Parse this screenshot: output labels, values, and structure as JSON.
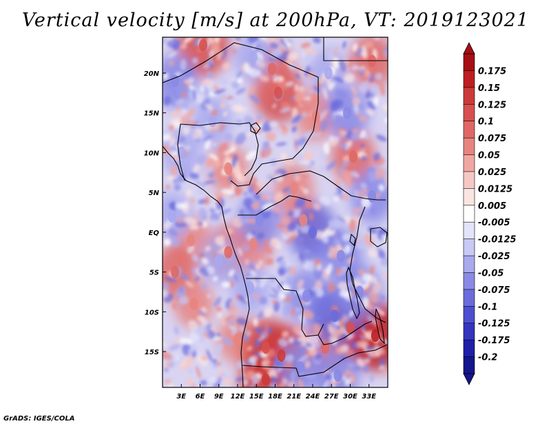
{
  "chart_data": {
    "type": "heatmap",
    "title": "Vertical velocity [m/s] at 200hPa, VT: 2019123021",
    "variable": "Vertical velocity",
    "units": "m/s",
    "level": "200hPa",
    "valid_time": "2019123021",
    "x_range": [
      0,
      36
    ],
    "y_range": [
      -19.5,
      24.5
    ],
    "x_ticks": [
      {
        "value": 3,
        "label": "3E"
      },
      {
        "value": 6,
        "label": "6E"
      },
      {
        "value": 9,
        "label": "9E"
      },
      {
        "value": 12,
        "label": "12E"
      },
      {
        "value": 15,
        "label": "15E"
      },
      {
        "value": 18,
        "label": "18E"
      },
      {
        "value": 21,
        "label": "21E"
      },
      {
        "value": 24,
        "label": "24E"
      },
      {
        "value": 27,
        "label": "27E"
      },
      {
        "value": 30,
        "label": "30E"
      },
      {
        "value": 33,
        "label": "33E"
      }
    ],
    "y_ticks": [
      {
        "value": 20,
        "label": "20N"
      },
      {
        "value": 15,
        "label": "15N"
      },
      {
        "value": 10,
        "label": "10N"
      },
      {
        "value": 5,
        "label": "5N"
      },
      {
        "value": 0,
        "label": "EQ"
      },
      {
        "value": -5,
        "label": "5S"
      },
      {
        "value": -10,
        "label": "10S"
      },
      {
        "value": -15,
        "label": "15S"
      }
    ],
    "colorbar": {
      "labels": [
        "0.175",
        "0.15",
        "0.125",
        "0.1",
        "0.075",
        "0.05",
        "0.025",
        "0.0125",
        "0.005",
        "-0.005",
        "-0.0125",
        "-0.025",
        "-0.05",
        "-0.075",
        "-0.1",
        "-0.125",
        "-0.175",
        "-0.2"
      ],
      "colors": [
        "#a50f15",
        "#bd1e23",
        "#cb3a39",
        "#d6504f",
        "#df6866",
        "#e88480",
        "#f0a7a2",
        "#f6c8c4",
        "#fbe5e2",
        "#ffffff",
        "#e3e3fb",
        "#c9c9f5",
        "#a9a9ee",
        "#8a8ae6",
        "#6b6bdc",
        "#4e4ed0",
        "#3434bf",
        "#1f1fa8",
        "#15158c"
      ]
    },
    "features": {
      "positive_cells": [
        {
          "lon": 6.5,
          "lat": 23.5,
          "value": 0.12
        },
        {
          "lon": 18.5,
          "lat": 17.5,
          "value": 0.1
        },
        {
          "lon": 17.5,
          "lat": 20.5,
          "value": 0.075
        },
        {
          "lon": 10.5,
          "lat": 8.0,
          "value": 0.05
        },
        {
          "lon": 21.0,
          "lat": 5.5,
          "value": 0.05
        },
        {
          "lon": 24.5,
          "lat": 14.5,
          "value": 0.05
        },
        {
          "lon": 30.5,
          "lat": 9.5,
          "value": 0.075
        },
        {
          "lon": 33.5,
          "lat": 21.5,
          "value": 0.075
        },
        {
          "lon": 4.5,
          "lat": -1.0,
          "value": 0.05
        },
        {
          "lon": 2.0,
          "lat": -5.0,
          "value": 0.075
        },
        {
          "lon": 10.5,
          "lat": -2.5,
          "value": 0.075
        },
        {
          "lon": 12.0,
          "lat": -13.5,
          "value": 0.05
        },
        {
          "lon": 5.0,
          "lat": -9.0,
          "value": 0.05
        },
        {
          "lon": 14.5,
          "lat": -1.5,
          "value": 0.05
        },
        {
          "lon": 16.5,
          "lat": -14.5,
          "value": 0.1
        },
        {
          "lon": 19.0,
          "lat": -15.5,
          "value": 0.125
        },
        {
          "lon": 16.5,
          "lat": -18.5,
          "value": 0.125
        },
        {
          "lon": 30.0,
          "lat": -12.0,
          "value": 0.1
        },
        {
          "lon": 34.0,
          "lat": -13.0,
          "value": 0.15
        },
        {
          "lon": 26.0,
          "lat": -14.5,
          "value": 0.075
        },
        {
          "lon": 22.5,
          "lat": 1.5,
          "value": 0.05
        }
      ],
      "negative_cells": [
        {
          "lon": 2.0,
          "lat": 19.0,
          "value": -0.075
        },
        {
          "lon": 8.0,
          "lat": 14.0,
          "value": -0.05
        },
        {
          "lon": 14.5,
          "lat": 22.0,
          "value": -0.05
        },
        {
          "lon": 26.5,
          "lat": 20.0,
          "value": -0.05
        },
        {
          "lon": 29.5,
          "lat": 15.0,
          "value": -0.075
        },
        {
          "lon": 24.0,
          "lat": 0.0,
          "value": -0.1
        },
        {
          "lon": 15.5,
          "lat": 1.5,
          "value": -0.075
        },
        {
          "lon": 9.0,
          "lat": -3.5,
          "value": -0.05
        },
        {
          "lon": 23.0,
          "lat": -8.0,
          "value": -0.075
        },
        {
          "lon": 28.5,
          "lat": -3.0,
          "value": -0.075
        },
        {
          "lon": 27.5,
          "lat": -10.5,
          "value": -0.1
        },
        {
          "lon": 31.5,
          "lat": -7.5,
          "value": -0.075
        },
        {
          "lon": 22.0,
          "lat": -17.0,
          "value": -0.075
        },
        {
          "lon": 28.0,
          "lat": -18.0,
          "value": -0.075
        },
        {
          "lon": 14.0,
          "lat": -7.0,
          "value": -0.05
        },
        {
          "lon": 3.0,
          "lat": 10.0,
          "value": -0.05
        },
        {
          "lon": 1.5,
          "lat": 2.0,
          "value": -0.05
        },
        {
          "lon": 33.5,
          "lat": 4.5,
          "value": -0.075
        }
      ]
    }
  },
  "footer": "GrADS: IGES/COLA"
}
